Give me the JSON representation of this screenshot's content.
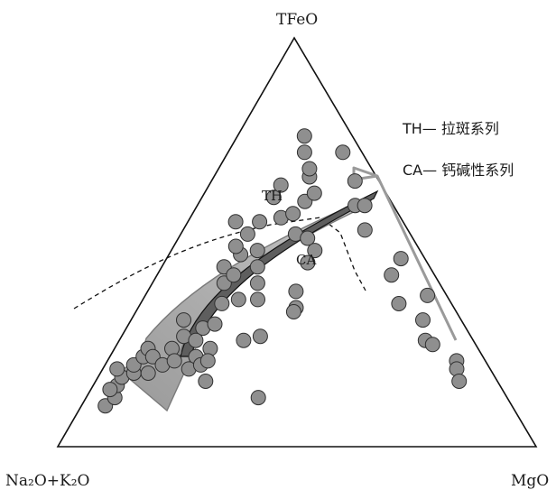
{
  "chart_data": {
    "type": "scatter",
    "subtype": "ternary",
    "title": "",
    "apices": {
      "top": "TFeO",
      "bottom_left": "Na₂O+K₂O",
      "bottom_right": "MgO"
    },
    "field_labels": {
      "th": "TH",
      "ca": "CA"
    },
    "legend": [
      "TH— 拉斑系列",
      "CA— 钙碱性系列"
    ],
    "colors": {
      "points": "#8f8f8f",
      "point_stroke": "#303030",
      "frame": "#111111",
      "boundary": "#111111",
      "calc_alkaline_arrow": "#a9a9a9",
      "tholeiitic_arrow": "#6b6b6b",
      "mgo_trend_arrow": "#9a9a9a"
    },
    "points_note": "composition fractions [TFeO, Na2O+K2O, MgO]",
    "points": [
      [
        0.1,
        0.85,
        0.05
      ],
      [
        0.12,
        0.82,
        0.06
      ],
      [
        0.15,
        0.8,
        0.05
      ],
      [
        0.14,
        0.82,
        0.04
      ],
      [
        0.17,
        0.78,
        0.05
      ],
      [
        0.18,
        0.75,
        0.07
      ],
      [
        0.2,
        0.74,
        0.06
      ],
      [
        0.19,
        0.78,
        0.03
      ],
      [
        0.22,
        0.71,
        0.07
      ],
      [
        0.24,
        0.69,
        0.07
      ],
      [
        0.22,
        0.69,
        0.09
      ],
      [
        0.18,
        0.72,
        0.1
      ],
      [
        0.2,
        0.68,
        0.12
      ],
      [
        0.24,
        0.64,
        0.12
      ],
      [
        0.21,
        0.65,
        0.14
      ],
      [
        0.27,
        0.6,
        0.13
      ],
      [
        0.31,
        0.58,
        0.11
      ],
      [
        0.29,
        0.55,
        0.16
      ],
      [
        0.26,
        0.58,
        0.16
      ],
      [
        0.24,
        0.56,
        0.2
      ],
      [
        0.3,
        0.52,
        0.18
      ],
      [
        0.35,
        0.48,
        0.17
      ],
      [
        0.4,
        0.45,
        0.15
      ],
      [
        0.44,
        0.43,
        0.13
      ],
      [
        0.47,
        0.38,
        0.15
      ],
      [
        0.52,
        0.34,
        0.14
      ],
      [
        0.55,
        0.3,
        0.15
      ],
      [
        0.61,
        0.24,
        0.15
      ],
      [
        0.64,
        0.21,
        0.15
      ],
      [
        0.56,
        0.25,
        0.19
      ],
      [
        0.57,
        0.22,
        0.21
      ],
      [
        0.52,
        0.24,
        0.24
      ],
      [
        0.51,
        0.22,
        0.27
      ],
      [
        0.48,
        0.22,
        0.3
      ],
      [
        0.45,
        0.25,
        0.3
      ],
      [
        0.48,
        0.34,
        0.18
      ],
      [
        0.44,
        0.36,
        0.2
      ],
      [
        0.4,
        0.38,
        0.22
      ],
      [
        0.42,
        0.42,
        0.16
      ],
      [
        0.36,
        0.4,
        0.24
      ],
      [
        0.38,
        0.31,
        0.31
      ],
      [
        0.34,
        0.33,
        0.33
      ],
      [
        0.33,
        0.34,
        0.33
      ],
      [
        0.36,
        0.44,
        0.2
      ],
      [
        0.27,
        0.44,
        0.29
      ],
      [
        0.26,
        0.48,
        0.26
      ],
      [
        0.22,
        0.6,
        0.18
      ],
      [
        0.19,
        0.63,
        0.18
      ],
      [
        0.2,
        0.6,
        0.2
      ],
      [
        0.16,
        0.61,
        0.23
      ],
      [
        0.21,
        0.58,
        0.21
      ],
      [
        0.12,
        0.52,
        0.36
      ],
      [
        0.49,
        0.38,
        0.13
      ],
      [
        0.55,
        0.35,
        0.1
      ],
      [
        0.6,
        0.18,
        0.22
      ],
      [
        0.62,
        0.15,
        0.23
      ],
      [
        0.66,
        0.14,
        0.2
      ],
      [
        0.68,
        0.13,
        0.19
      ],
      [
        0.72,
        0.12,
        0.16
      ],
      [
        0.76,
        0.1,
        0.14
      ],
      [
        0.59,
        0.08,
        0.33
      ],
      [
        0.53,
        0.09,
        0.38
      ],
      [
        0.42,
        0.09,
        0.49
      ],
      [
        0.35,
        0.11,
        0.54
      ],
      [
        0.31,
        0.08,
        0.61
      ],
      [
        0.26,
        0.1,
        0.64
      ],
      [
        0.25,
        0.09,
        0.66
      ],
      [
        0.21,
        0.06,
        0.73
      ],
      [
        0.19,
        0.07,
        0.74
      ],
      [
        0.16,
        0.08,
        0.76
      ],
      [
        0.72,
        0.04,
        0.24
      ],
      [
        0.65,
        0.05,
        0.3
      ],
      [
        0.59,
        0.06,
        0.35
      ],
      [
        0.46,
        0.05,
        0.49
      ],
      [
        0.37,
        0.04,
        0.59
      ]
    ]
  }
}
